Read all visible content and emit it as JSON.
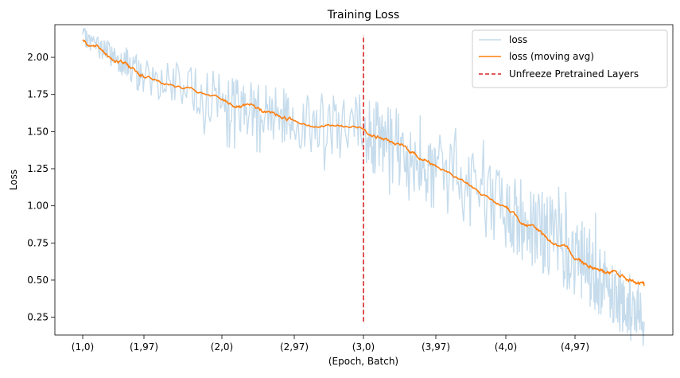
{
  "chart_data": {
    "type": "line",
    "title": "Training Loss",
    "xlabel": "(Epoch, Batch)",
    "ylabel": "Loss",
    "x_tick_labels": [
      "(1,0)",
      "(1,97)",
      "(2,0)",
      "(2,97)",
      "(3,0)",
      "(3,97)",
      "(4,0)",
      "(4,97)"
    ],
    "y_tick_labels": [
      "0.25",
      "0.50",
      "0.75",
      "1.00",
      "1.25",
      "1.50",
      "1.75",
      "2.00"
    ],
    "y_ticks": [
      0.25,
      0.5,
      0.75,
      1.0,
      1.25,
      1.5,
      1.75,
      2.0
    ],
    "ylim": [
      0.13,
      2.22
    ],
    "grid": false,
    "legend_position": "top-right",
    "series": [
      {
        "name": "loss",
        "color": "#c6dcec",
        "x": [
          "(1,0)",
          "(1,97)",
          "(2,0)",
          "(2,97)",
          "(3,0)",
          "(3,97)",
          "(4,0)",
          "(4,97)",
          "(5,75)"
        ],
        "values": [
          2.14,
          1.88,
          1.72,
          1.58,
          1.5,
          1.25,
          0.98,
          0.68,
          0.22
        ],
        "range_min": [
          2.02,
          1.75,
          1.4,
          1.32,
          1.13,
          0.98,
          0.72,
          0.4,
          0.22
        ],
        "range_max": [
          2.16,
          2.03,
          1.85,
          1.78,
          1.72,
          1.58,
          1.38,
          1.05,
          0.72
        ]
      },
      {
        "name": "loss (moving avg)",
        "color": "#ff7f0e",
        "x": [
          "(1,0)",
          "(1,97)",
          "(2,0)",
          "(2,97)",
          "(3,0)",
          "(3,97)",
          "(4,0)",
          "(4,97)",
          "(5,75)"
        ],
        "values": [
          2.12,
          1.88,
          1.7,
          1.58,
          1.52,
          1.28,
          0.98,
          0.65,
          0.46
        ]
      },
      {
        "name": "Unfreeze Pretrained Layers",
        "color": "#d62728",
        "style": "dashed",
        "x": [
          "(3,0)",
          "(3,0)"
        ],
        "values": [
          0.22,
          2.15
        ]
      }
    ]
  }
}
